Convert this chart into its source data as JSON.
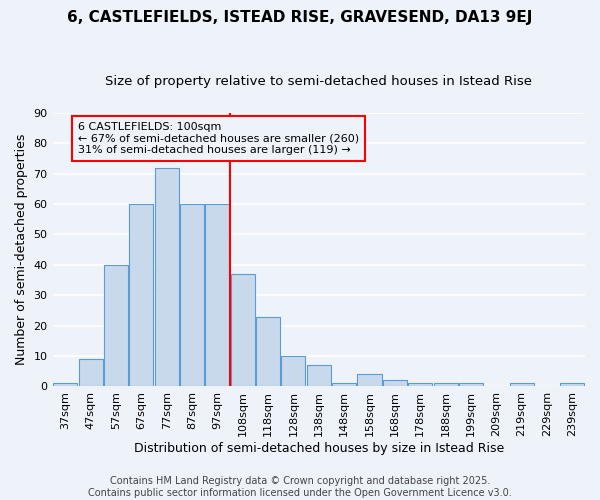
{
  "title": "6, CASTLEFIELDS, ISTEAD RISE, GRAVESEND, DA13 9EJ",
  "subtitle": "Size of property relative to semi-detached houses in Istead Rise",
  "xlabel": "Distribution of semi-detached houses by size in Istead Rise",
  "ylabel": "Number of semi-detached properties",
  "bar_labels": [
    "37sqm",
    "47sqm",
    "57sqm",
    "67sqm",
    "77sqm",
    "87sqm",
    "97sqm",
    "108sqm",
    "118sqm",
    "128sqm",
    "138sqm",
    "148sqm",
    "158sqm",
    "168sqm",
    "178sqm",
    "188sqm",
    "199sqm",
    "209sqm",
    "219sqm",
    "229sqm",
    "239sqm"
  ],
  "bar_values": [
    1,
    9,
    40,
    60,
    72,
    60,
    60,
    37,
    23,
    10,
    7,
    1,
    4,
    2,
    1,
    1,
    1,
    0,
    1,
    0,
    1
  ],
  "bar_color": "#c9d9ec",
  "bar_edgecolor": "#5b9bd5",
  "vline_index": 7,
  "marker_label": "6 CASTLEFIELDS: 100sqm",
  "pct_smaller": 67,
  "pct_smaller_count": 260,
  "pct_larger": 31,
  "pct_larger_count": 119,
  "vline_color": "red",
  "footer": "Contains HM Land Registry data © Crown copyright and database right 2025.\nContains public sector information licensed under the Open Government Licence v3.0.",
  "ylim": [
    0,
    90
  ],
  "yticks": [
    0,
    10,
    20,
    30,
    40,
    50,
    60,
    70,
    80,
    90
  ],
  "background_color": "#eef2f9",
  "grid_color": "white",
  "title_fontsize": 11,
  "subtitle_fontsize": 9.5,
  "axis_label_fontsize": 9,
  "tick_fontsize": 8,
  "footer_fontsize": 7,
  "ann_fontsize": 8
}
